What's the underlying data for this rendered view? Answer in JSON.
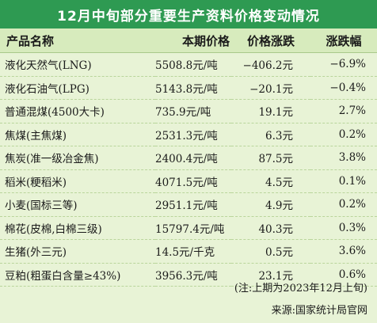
{
  "title": "12月中旬部分重要生产资料价格变动情况",
  "headers": [
    "产品名称",
    "本期价格",
    "价格涨跌",
    "涨跌幅"
  ],
  "rows": [
    {
      "name": "液化天然气(LNG)",
      "price": "5508.8元/吨",
      "change": "−406.2元",
      "pct": "−6.9%"
    },
    {
      "name": "液化石油气(LPG)",
      "price": "5143.8元/吨",
      "change": "−20.1元",
      "pct": "−0.4%"
    },
    {
      "name": "普通混煤(4500大卡)",
      "price": "735.9元/吨",
      "change": "19.1元",
      "pct": "2.7%"
    },
    {
      "name": "焦煤(主焦煤)",
      "price": "2531.3元/吨",
      "change": "6.3元",
      "pct": "0.2%"
    },
    {
      "name": "焦炭(准一级冶金焦)",
      "price": "2400.4元/吨",
      "change": "87.5元",
      "pct": "3.8%"
    },
    {
      "name": "稻米(粳稻米)",
      "price": "4071.5元/吨",
      "change": "4.5元",
      "pct": "0.1%"
    },
    {
      "name": "小麦(国标三等)",
      "price": "2951.1元/吨",
      "change": "4.9元",
      "pct": "0.2%"
    },
    {
      "name": "棉花(皮棉,白棉三级)",
      "price": "15797.4元/吨",
      "change": "40.3元",
      "pct": "0.3%"
    },
    {
      "name": "生猪(外三元)",
      "price": "14.5元/千克",
      "change": "0.5元",
      "pct": "3.6%"
    },
    {
      "name": "豆粕(粗蛋白含量≥43%)",
      "price": "3956.3元/吨",
      "change": "23.1元",
      "pct": "0.6%"
    }
  ],
  "note": "(注:上期为2023年12月上旬)",
  "source": "来源:国家统计局官网",
  "colors": {
    "title_bar": "#2e9a52",
    "background": "#e8f3d6",
    "header_row": "#d7ebbd"
  }
}
